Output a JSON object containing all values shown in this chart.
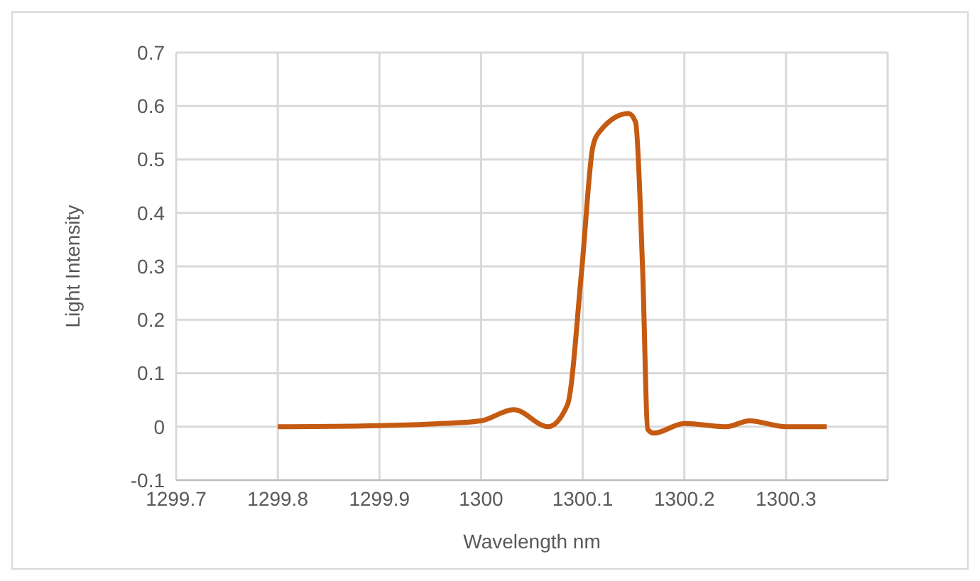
{
  "chart_data": {
    "type": "line",
    "xlabel": "Wavelength nm",
    "ylabel": "Light Intensity",
    "x": [
      1299.8,
      1299.9,
      1299.95,
      1300.0,
      1300.032,
      1300.066,
      1300.085,
      1300.099,
      1300.11,
      1300.117,
      1300.145,
      1300.152,
      1300.159,
      1300.164,
      1300.17,
      1300.2,
      1300.241,
      1300.264,
      1300.3,
      1300.34
    ],
    "series": [
      {
        "color": "#c55a11",
        "values": [
          0,
          0.002,
          0.005,
          0.011,
          0.032,
          0,
          0.041,
          0.293,
          0.524,
          0.553,
          0.586,
          0.57,
          0.29,
          -0.005,
          -0.012,
          0.006,
          0,
          0.011,
          0,
          0
        ]
      }
    ],
    "xlim": [
      1299.7,
      1300.4
    ],
    "xticks": [
      1299.7,
      1299.8,
      1299.9,
      1300,
      1300.1,
      1300.2,
      1300.3,
      {
        "value": 1300.4,
        "label": null
      }
    ],
    "ylim": [
      -0.1,
      0.7
    ],
    "yticks": [
      -0.1,
      0,
      0.1,
      0.2,
      0.3,
      0.4,
      0.5,
      0.6,
      0.7
    ],
    "grid": true,
    "legend": false,
    "marker": "none",
    "line_style": "solid"
  }
}
